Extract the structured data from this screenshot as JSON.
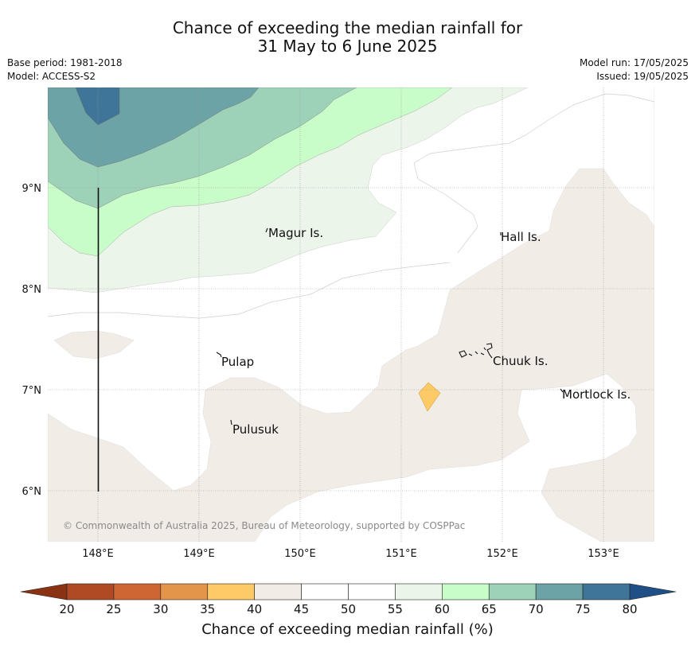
{
  "header": {
    "title_line1": "Chance of exceeding the median rainfall for",
    "title_line2": "31 May to 6 June 2025",
    "base_period": "Base period: 1981-2018",
    "model": "Model: ACCESS-S2",
    "model_run": "Model run: 17/05/2025",
    "issued": "Issued: 19/05/2025"
  },
  "map": {
    "lon_ticks": [
      "148°E",
      "149°E",
      "150°E",
      "151°E",
      "152°E",
      "153°E"
    ],
    "lat_ticks": [
      "9°N",
      "8°N",
      "7°N",
      "6°N"
    ],
    "places": [
      {
        "name": "Magur Is.",
        "lon": 149.7,
        "lat": 8.55
      },
      {
        "name": "Hall Is.",
        "lon": 152.0,
        "lat": 8.55
      },
      {
        "name": "Pulap",
        "lon": 149.2,
        "lat": 7.35
      },
      {
        "name": "Chuuk Is.",
        "lon": 151.85,
        "lat": 7.4
      },
      {
        "name": "Pulusuk",
        "lon": 149.3,
        "lat": 6.7
      },
      {
        "name": "Mortlock Is.",
        "lon": 152.6,
        "lat": 7.0
      }
    ],
    "copyright": "© Commonwealth of Australia 2025, Bureau of Meteorology, supported by COSPPac"
  },
  "colorbar": {
    "ticks": [
      "20",
      "25",
      "30",
      "35",
      "40",
      "45",
      "50",
      "55",
      "60",
      "65",
      "70",
      "75",
      "80"
    ],
    "colors": [
      "#b04a25",
      "#cd6632",
      "#e3954a",
      "#fdca66",
      "#f1ece6",
      "#ffffff",
      "#ffffff",
      "#ebf5ea",
      "#c8fcc9",
      "#9ed2b8",
      "#6ca3a6",
      "#3f7599"
    ],
    "under_color": "#8a3214",
    "over_color": "#1f4f86",
    "label": "Chance of exceeding median rainfall (%)"
  }
}
